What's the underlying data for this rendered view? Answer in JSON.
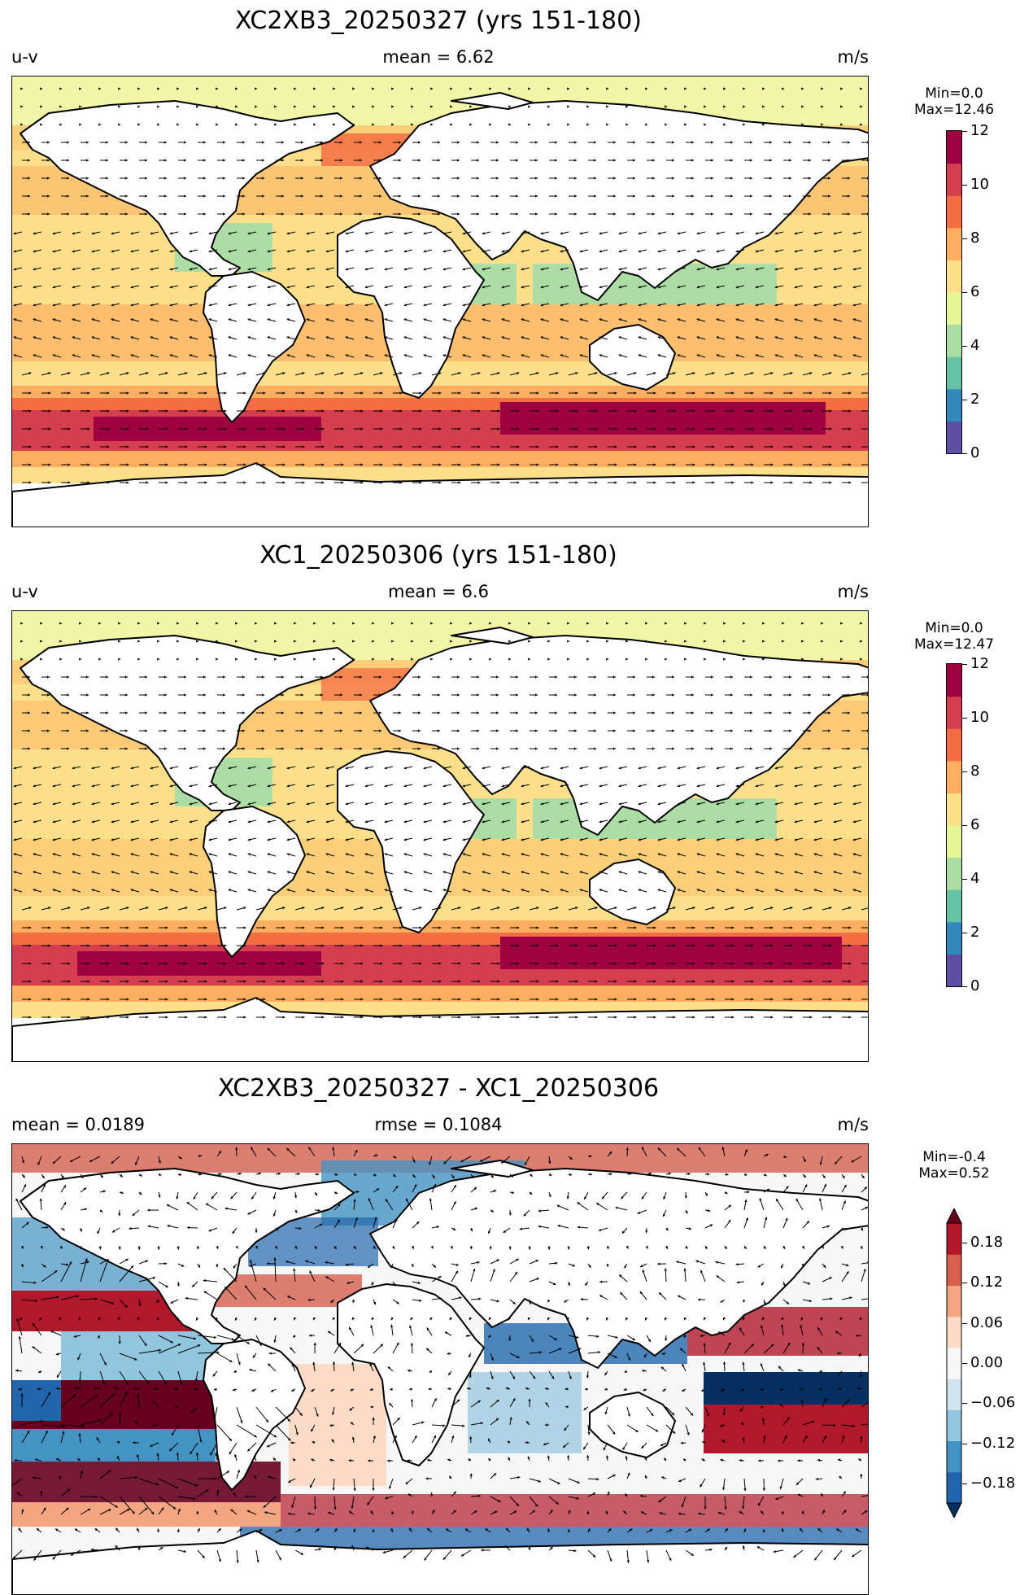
{
  "panels": [
    {
      "title": "XC2XB3_20250327 (yrs 151-180)",
      "left_label": "u-v",
      "center_label": "mean = 6.62",
      "units": "m/s",
      "colorbar": {
        "min_label": "Min=0.0",
        "max_label": "Max=12.46",
        "ticks": [
          "0",
          "2",
          "4",
          "6",
          "8",
          "10",
          "12"
        ],
        "colors": [
          "#5e4fa2",
          "#3288bd",
          "#66c2a5",
          "#abdda4",
          "#e6f598",
          "#fee08b",
          "#fdae61",
          "#f46d43",
          "#d53e4f",
          "#9e0142"
        ]
      }
    },
    {
      "title": "XC1_20250306 (yrs 151-180)",
      "left_label": "u-v",
      "center_label": "mean = 6.6",
      "units": "m/s",
      "colorbar": {
        "min_label": "Min=0.0",
        "max_label": "Max=12.47",
        "ticks": [
          "0",
          "2",
          "4",
          "6",
          "8",
          "10",
          "12"
        ],
        "colors": [
          "#5e4fa2",
          "#3288bd",
          "#66c2a5",
          "#abdda4",
          "#e6f598",
          "#fee08b",
          "#fdae61",
          "#f46d43",
          "#d53e4f",
          "#9e0142"
        ]
      }
    },
    {
      "title": "XC2XB3_20250327 - XC1_20250306",
      "left_label": "mean = 0.0189",
      "center_label": "rmse = 0.1084",
      "units": "m/s",
      "colorbar": {
        "min_label": "Min=-0.4",
        "max_label": "Max=0.52",
        "ticks": [
          "−0.18",
          "−0.12",
          "−0.06",
          "0.00",
          "0.06",
          "0.12",
          "0.18"
        ],
        "colors": [
          "#053061",
          "#2166ac",
          "#4393c3",
          "#92c5de",
          "#d1e5f0",
          "#f7f7f7",
          "#fddbc7",
          "#f4a582",
          "#d6604d",
          "#b2182b",
          "#67001f"
        ]
      }
    }
  ]
}
